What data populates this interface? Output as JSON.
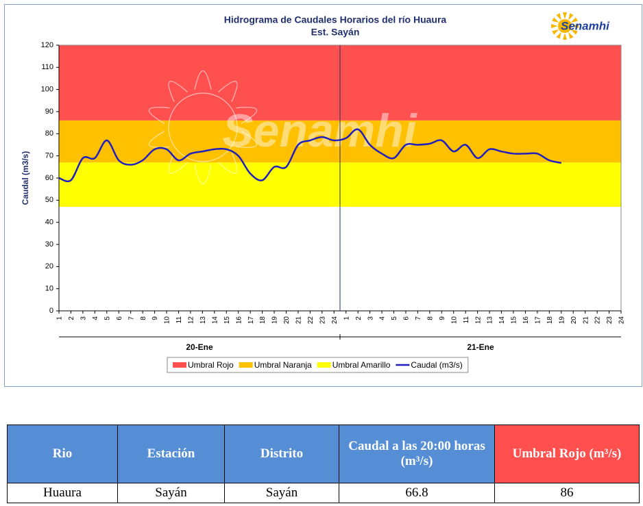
{
  "chart_data": {
    "type": "line",
    "title": "Hidrograma de Caudales Horarios del río Huaura",
    "subtitle": "Est. Sayán",
    "logo": "Senamhi",
    "watermark": "Senamhi",
    "ylabel": "Caudal  (m3/s)",
    "categories": [
      "1",
      "2",
      "3",
      "4",
      "5",
      "6",
      "7",
      "8",
      "9",
      "10",
      "11",
      "12",
      "13",
      "14",
      "15",
      "16",
      "17",
      "18",
      "19",
      "20",
      "21",
      "22",
      "23",
      "24",
      "1",
      "2",
      "3",
      "4",
      "5",
      "6",
      "7",
      "8",
      "9",
      "10",
      "11",
      "12",
      "13",
      "14",
      "15",
      "16",
      "17",
      "18",
      "19",
      "20",
      "21",
      "22",
      "23",
      "24"
    ],
    "groups": [
      "20-Ene",
      "21-Ene"
    ],
    "bands": [
      {
        "name": "Umbral Rojo",
        "color": "#ff5050",
        "from": 86,
        "to": 120
      },
      {
        "name": "Umbral Naranja",
        "color": "#ffc000",
        "from": 67,
        "to": 86
      },
      {
        "name": "Umbral Amarillo",
        "color": "#ffff00",
        "from": 47,
        "to": 67
      }
    ],
    "series": [
      {
        "name": "Caudal (m3/s)",
        "color": "#1f1fbf",
        "values": [
          60,
          59,
          69,
          69,
          77,
          68,
          66,
          68,
          73,
          73,
          68,
          71,
          72,
          73,
          73,
          70,
          62,
          59,
          65,
          65,
          75,
          77,
          78.5,
          77,
          78,
          82,
          75,
          71,
          69,
          75,
          75,
          75.5,
          77,
          72,
          75,
          69,
          73,
          72,
          71,
          71,
          71,
          68,
          66.8,
          null,
          null,
          null,
          null,
          null
        ]
      }
    ],
    "ylim": [
      0,
      120
    ],
    "yticks": [
      0,
      10,
      20,
      30,
      40,
      50,
      60,
      70,
      80,
      90,
      100,
      110,
      120
    ]
  },
  "table": {
    "header": [
      "Rio",
      "Estación",
      "Distrito",
      "Caudal a las 20:00 horas (m³/s)",
      "Umbral Rojo (m³/s)"
    ],
    "rows": [
      [
        "Huaura",
        "Sayán",
        "Sayán",
        "66.8",
        "86"
      ]
    ]
  }
}
